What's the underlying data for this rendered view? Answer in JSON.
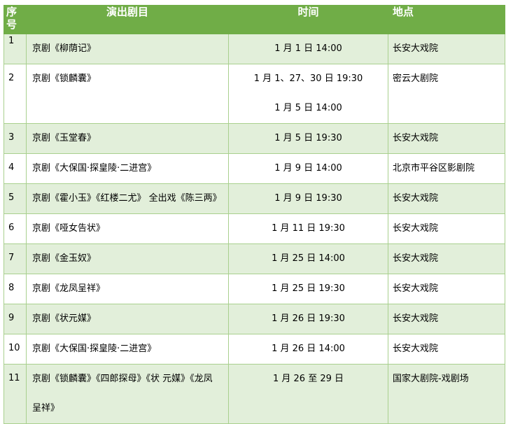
{
  "header": {
    "index": "序号",
    "title": "演出剧目",
    "time": "时间",
    "venue": "地点"
  },
  "colors": {
    "header": "#70AD47",
    "alt_row": "#E2EFDA",
    "border": "#A9D08E"
  },
  "rows": [
    {
      "index": "1",
      "title": [
        "京剧《柳荫记》"
      ],
      "time": [
        "1 月 1 日 14:00"
      ],
      "venue": "长安大戏院"
    },
    {
      "index": "2",
      "title": [
        "京剧《锁麟囊》"
      ],
      "time": [
        "1 月 1、27、30 日 19:30",
        "1 月 5 日 14:00"
      ],
      "venue": "密云大剧院"
    },
    {
      "index": "3",
      "title": [
        "京剧《玉堂春》"
      ],
      "time": [
        "1 月 5 日 19:30"
      ],
      "venue": "长安大戏院"
    },
    {
      "index": "4",
      "title": [
        "京剧《大保国·探皇陵·二进宫》"
      ],
      "time": [
        "1 月 9 日 14:00"
      ],
      "venue": "北京市平谷区影剧院"
    },
    {
      "index": "5",
      "title": [
        "京剧《霍小玉》《红楼二尤》 全出戏《陈三两》"
      ],
      "time": [
        "1 月 9 日 19:30"
      ],
      "venue": "长安大戏院"
    },
    {
      "index": "6",
      "title": [
        "京剧《哑女告状》"
      ],
      "time": [
        "1 月 11 日 19:30"
      ],
      "venue": "长安大戏院"
    },
    {
      "index": "7",
      "title": [
        "京剧《金玉奴》"
      ],
      "time": [
        "1 月 25 日 14:00"
      ],
      "venue": "长安大戏院"
    },
    {
      "index": "8",
      "title": [
        "京剧《龙凤呈祥》"
      ],
      "time": [
        "1 月 25 日 19:30"
      ],
      "venue": "长安大戏院"
    },
    {
      "index": "9",
      "title": [
        "京剧《状元媒》"
      ],
      "time": [
        "1 月 26 日 19:30"
      ],
      "venue": "长安大戏院"
    },
    {
      "index": "10",
      "title": [
        "京剧《大保国·探皇陵·二进宫》"
      ],
      "time": [
        "1 月 26 日 14:00"
      ],
      "venue": "长安大戏院"
    },
    {
      "index": "11",
      "title": [
        "京剧《锁麟囊》《四郎探母》《状 元媒》《龙凤",
        "呈祥》"
      ],
      "time": [
        "1 月 26 至 29 日"
      ],
      "venue": "国家大剧院-戏剧场"
    }
  ]
}
